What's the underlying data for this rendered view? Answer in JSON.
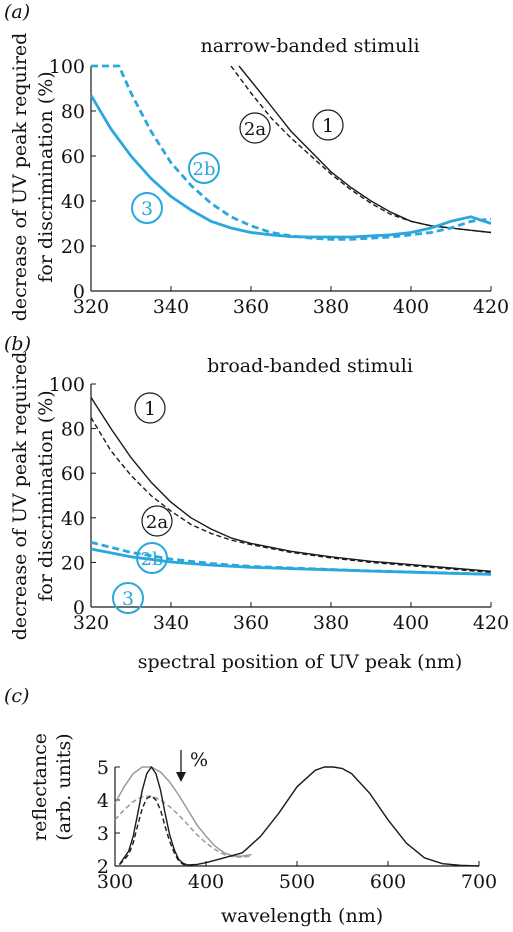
{
  "colors": {
    "black": "#1a1a1a",
    "blue": "#2aa7dc",
    "grey": "#9a9a9a"
  },
  "chart_data": [
    {
      "panel": "(a)",
      "type": "line",
      "title": "narrow-banded stimuli",
      "xlabel": "",
      "ylabel": [
        "decrease of UV peak required",
        "for discrimination (%)"
      ],
      "xlim": [
        320,
        420
      ],
      "ylim": [
        0,
        100
      ],
      "xticks": [
        "320",
        "340",
        "360",
        "380",
        "400",
        "420"
      ],
      "yticks": [
        "0",
        "20",
        "40",
        "60",
        "80",
        "100"
      ],
      "series": [
        {
          "name": "1",
          "color": "black",
          "dash": "solid",
          "x": [
            357,
            362,
            366,
            370,
            375,
            380,
            385,
            390,
            395,
            400,
            405,
            410,
            415,
            420
          ],
          "y": [
            100,
            89,
            80,
            71,
            62,
            53,
            46,
            40,
            35,
            31,
            29,
            28,
            27,
            26
          ]
        },
        {
          "name": "2a",
          "color": "black",
          "dash": "dashed",
          "x": [
            355,
            360,
            365,
            370,
            375,
            380,
            385,
            390,
            395,
            400,
            405,
            410,
            415,
            420
          ],
          "y": [
            100,
            88,
            77,
            68,
            60,
            52,
            45,
            39,
            34,
            31,
            29,
            28,
            27,
            26
          ]
        },
        {
          "name": "2b",
          "color": "blue",
          "dash": "dashed",
          "x": [
            320,
            327,
            330,
            335,
            340,
            345,
            350,
            355,
            360,
            365,
            370,
            375,
            380,
            385,
            390,
            395,
            400,
            405,
            410,
            415,
            420
          ],
          "y": [
            100,
            100,
            88,
            71,
            57,
            47,
            39,
            33,
            29,
            26,
            24.5,
            23.5,
            23,
            23,
            23.5,
            24,
            25,
            26,
            28,
            31,
            32
          ]
        },
        {
          "name": "3",
          "color": "blue",
          "dash": "solid",
          "x": [
            320,
            325,
            330,
            335,
            340,
            345,
            350,
            355,
            360,
            365,
            370,
            375,
            380,
            385,
            390,
            395,
            400,
            405,
            410,
            415,
            420
          ],
          "y": [
            87,
            72,
            60,
            50,
            42,
            36,
            31,
            28,
            26,
            25,
            24.2,
            24,
            24,
            24,
            24.5,
            25,
            26,
            28,
            31,
            33,
            30
          ]
        }
      ]
    },
    {
      "panel": "(b)",
      "type": "line",
      "title": "broad-banded stimuli",
      "xlabel": "spectral position of UV peak (nm)",
      "ylabel": [
        "decrease of UV peak required",
        "for discrimination (%)"
      ],
      "xlim": [
        320,
        420
      ],
      "ylim": [
        0,
        100
      ],
      "xticks": [
        "320",
        "340",
        "360",
        "380",
        "400",
        "420"
      ],
      "yticks": [
        "0",
        "20",
        "40",
        "60",
        "80",
        "100"
      ],
      "series": [
        {
          "name": "1",
          "color": "black",
          "dash": "solid",
          "x": [
            320,
            325,
            330,
            335,
            340,
            345,
            350,
            355,
            360,
            370,
            380,
            390,
            400,
            410,
            420
          ],
          "y": [
            94,
            80,
            67,
            56,
            47,
            40,
            35,
            31,
            28.5,
            25,
            22.5,
            20.5,
            19,
            17.5,
            16
          ]
        },
        {
          "name": "2a",
          "color": "black",
          "dash": "dashed",
          "x": [
            320,
            325,
            330,
            335,
            340,
            345,
            350,
            355,
            360,
            370,
            380,
            390,
            400,
            410,
            420
          ],
          "y": [
            85,
            70,
            59,
            50,
            43,
            37,
            33,
            30,
            28,
            24.5,
            22,
            20,
            18.5,
            17,
            15.5
          ]
        },
        {
          "name": "2b",
          "color": "blue",
          "dash": "dashed",
          "x": [
            320,
            330,
            340,
            350,
            360,
            370,
            380,
            390,
            400,
            410,
            420
          ],
          "y": [
            29,
            24.5,
            21.5,
            19.5,
            18.2,
            17.5,
            16.8,
            16.2,
            15.7,
            15.2,
            14.7
          ]
        },
        {
          "name": "3",
          "color": "blue",
          "dash": "solid",
          "x": [
            320,
            330,
            340,
            350,
            360,
            370,
            380,
            390,
            400,
            410,
            420
          ],
          "y": [
            26,
            22.5,
            20.2,
            18.8,
            17.8,
            17.2,
            16.7,
            16.1,
            15.6,
            15.1,
            14.6
          ]
        }
      ]
    },
    {
      "panel": "(c)",
      "type": "line",
      "title": "",
      "xlabel": "wavelength (nm)",
      "ylabel": [
        "reflectance",
        "(arb. units)"
      ],
      "xlim": [
        300,
        700
      ],
      "ylim": [
        2,
        5
      ],
      "xticks": [
        "300",
        "400",
        "500",
        "600",
        "700"
      ],
      "yticks": [
        "2",
        "3",
        "4",
        "5"
      ],
      "annotation": "%",
      "series": [
        {
          "color": "grey",
          "dash": "solid",
          "x": [
            300,
            310,
            320,
            330,
            340,
            350,
            360,
            370,
            380,
            390,
            400,
            410,
            420,
            430,
            440,
            450
          ],
          "y": [
            3.9,
            4.4,
            4.8,
            5.0,
            5.0,
            4.85,
            4.55,
            4.15,
            3.7,
            3.25,
            2.9,
            2.6,
            2.4,
            2.3,
            2.3,
            2.35
          ]
        },
        {
          "color": "grey",
          "dash": "dashed",
          "x": [
            300,
            310,
            320,
            330,
            340,
            350,
            360,
            370,
            380,
            390,
            400,
            410,
            420,
            430,
            440,
            450
          ],
          "y": [
            3.4,
            3.7,
            3.95,
            4.1,
            4.12,
            4.0,
            3.8,
            3.55,
            3.25,
            2.95,
            2.7,
            2.5,
            2.35,
            2.28,
            2.27,
            2.3
          ]
        },
        {
          "color": "black",
          "dash": "solid",
          "x": [
            305,
            315,
            320,
            325,
            330,
            335,
            340,
            345,
            350,
            355,
            360,
            365,
            370,
            375,
            380,
            390,
            400,
            420,
            440,
            460,
            480,
            500,
            520,
            530,
            540,
            550,
            560,
            580,
            600,
            620,
            640,
            660,
            680,
            700
          ],
          "y": [
            2.05,
            2.45,
            2.9,
            3.6,
            4.3,
            4.8,
            5.0,
            4.8,
            4.3,
            3.6,
            2.95,
            2.5,
            2.2,
            2.08,
            2.03,
            2.05,
            2.1,
            2.25,
            2.4,
            2.9,
            3.6,
            4.4,
            4.9,
            5.0,
            5.0,
            4.95,
            4.8,
            4.2,
            3.4,
            2.7,
            2.25,
            2.07,
            2.02,
            2.0
          ]
        },
        {
          "color": "black",
          "dash": "dashed",
          "x": [
            305,
            315,
            320,
            325,
            330,
            335,
            340,
            345,
            350,
            355,
            360,
            365,
            370,
            375,
            380,
            390
          ],
          "y": [
            2.04,
            2.35,
            2.7,
            3.25,
            3.75,
            4.05,
            4.12,
            4.0,
            3.7,
            3.2,
            2.75,
            2.4,
            2.15,
            2.05,
            2.02,
            2.02
          ]
        }
      ]
    }
  ]
}
